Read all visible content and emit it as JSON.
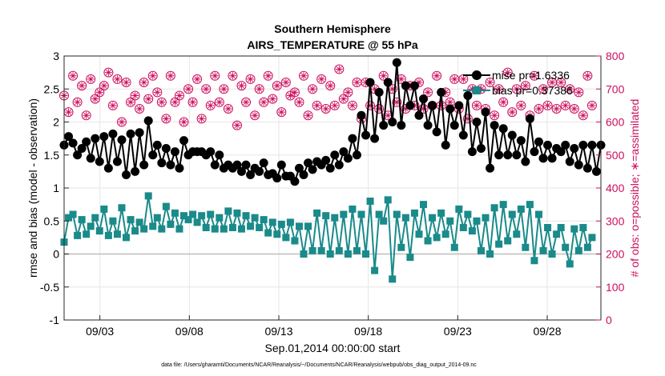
{
  "chart_data": {
    "type": "line",
    "title": "Southern Hemisphere",
    "subtitle": "AIRS_TEMPERATURE @ 55 hPa",
    "xlabel": "Sep.01,2014 00:00:00 start",
    "ylabel_left": "rmse and bias (model - observation)",
    "ylabel_right": "# of obs: o=possible; ∗=assimilated",
    "footnote": "data file: /Users/gharamti/Documents/NCAR/Reanalysis/~/Documents/NCAR/Reanalysis/webpub/obs_diag_output_2014-09.nc",
    "x_range_days": [
      1.0,
      31.0
    ],
    "x_tick_days": [
      3,
      8,
      13,
      18,
      23,
      28
    ],
    "x_tick_labels": [
      "09/03",
      "09/08",
      "09/13",
      "09/18",
      "09/23",
      "09/28"
    ],
    "ylim_left": [
      -1,
      3
    ],
    "y_ticks_left": [
      "-1",
      "-0.5",
      "0",
      "0.5",
      "1",
      "1.5",
      "2",
      "2.5",
      "3"
    ],
    "ylim_right": [
      0,
      800
    ],
    "y_ticks_right": [
      "0",
      "100",
      "200",
      "300",
      "400",
      "500",
      "600",
      "700",
      "800"
    ],
    "grid": true,
    "legend_position": "top-right",
    "colors": {
      "rmse": "#000000",
      "bias": "#1a8a8a",
      "obs": "#cc0f5e",
      "zero_line": "#bdbdbd",
      "grid": "#e6e6e6"
    },
    "series": [
      {
        "name": "mise pr=1.6336",
        "axis": "left",
        "values": [
          1.65,
          1.78,
          1.68,
          1.5,
          1.6,
          1.7,
          1.45,
          1.75,
          1.4,
          1.78,
          1.3,
          1.82,
          1.4,
          1.73,
          1.2,
          1.82,
          1.25,
          1.84,
          1.35,
          2.02,
          1.5,
          1.65,
          1.38,
          1.6,
          1.35,
          1.55,
          1.3,
          1.72,
          1.5,
          1.55,
          1.55,
          1.55,
          1.5,
          1.55,
          1.35,
          1.5,
          1.3,
          1.35,
          1.3,
          1.35,
          1.25,
          1.35,
          1.2,
          1.3,
          1.25,
          1.38,
          1.2,
          1.22,
          1.15,
          1.35,
          1.18,
          1.18,
          1.1,
          1.3,
          1.2,
          1.38,
          1.28,
          1.4,
          1.35,
          1.42,
          1.3,
          1.5,
          1.35,
          1.55,
          1.45,
          1.75,
          1.5,
          2.1,
          1.8,
          2.6,
          1.75,
          2.45,
          1.95,
          2.6,
          2.0,
          2.9,
          1.95,
          2.55,
          2.25,
          2.55,
          2.1,
          2.35,
          1.95,
          2.25,
          1.85,
          2.45,
          1.65,
          2.2,
          1.95,
          2.25,
          1.8,
          2.4,
          1.55,
          2.0,
          1.6,
          2.15,
          1.3,
          1.95,
          1.5,
          1.9,
          1.5,
          1.8,
          1.5,
          1.72,
          1.4,
          2.05,
          1.55,
          1.7,
          1.45,
          1.65,
          1.45,
          1.6,
          1.55,
          1.65,
          1.4,
          1.6,
          1.35,
          1.65,
          1.3,
          1.65,
          1.25,
          1.65
        ]
      },
      {
        "name": "bias pr=0.37386",
        "axis": "left",
        "values": [
          0.18,
          0.55,
          0.6,
          0.28,
          0.52,
          0.3,
          0.42,
          0.55,
          0.35,
          0.68,
          0.28,
          0.5,
          0.3,
          0.7,
          0.25,
          0.52,
          0.35,
          0.48,
          0.38,
          0.88,
          0.42,
          0.55,
          0.38,
          0.72,
          0.45,
          0.62,
          0.38,
          0.58,
          0.52,
          0.6,
          0.48,
          0.58,
          0.4,
          0.6,
          0.38,
          0.55,
          0.38,
          0.65,
          0.4,
          0.62,
          0.38,
          0.58,
          0.42,
          0.55,
          0.4,
          0.52,
          0.32,
          0.48,
          0.3,
          0.45,
          0.25,
          0.48,
          0.2,
          0.42,
          0.0,
          0.42,
          0.05,
          0.62,
          0.05,
          0.58,
          0.0,
          0.55,
          0.05,
          0.6,
          0.0,
          0.68,
          0.05,
          0.6,
          0.0,
          0.8,
          -0.25,
          0.6,
          0.5,
          0.82,
          -0.38,
          0.6,
          0.1,
          0.55,
          -0.05,
          0.62,
          0.3,
          0.75,
          0.2,
          0.55,
          0.25,
          0.62,
          0.3,
          0.5,
          0.1,
          0.68,
          0.4,
          0.6,
          0.35,
          0.5,
          0.05,
          0.55,
          0.0,
          0.7,
          0.15,
          0.75,
          0.2,
          0.6,
          0.3,
          0.68,
          0.1,
          0.75,
          -0.1,
          0.6,
          0.05,
          0.4,
          0.0,
          0.3,
          0.4,
          0.1,
          -0.15,
          0.38,
          0.05,
          0.4,
          0.1,
          0.25
        ]
      },
      {
        "name": "obs possible",
        "axis": "right",
        "values": [
          680,
          630,
          740,
          660,
          710,
          620,
          730,
          670,
          690,
          710,
          750,
          650,
          730,
          600,
          720,
          660,
          680,
          640,
          720,
          670,
          740,
          690,
          660,
          610,
          740,
          660,
          680,
          600,
          700,
          660,
          730,
          610,
          700,
          650,
          740,
          660,
          700,
          640,
          740,
          590,
          710,
          660,
          730,
          620,
          700,
          660,
          740,
          670,
          710,
          630,
          720,
          680,
          690,
          660,
          740,
          620,
          700,
          650,
          730,
          640,
          710,
          650,
          760,
          670,
          690,
          650,
          720,
          610,
          720,
          650,
          700,
          640,
          740,
          620,
          700,
          660,
          730,
          640,
          710,
          650,
          720,
          640,
          690,
          650,
          740,
          650,
          690,
          660,
          730,
          640,
          730,
          610,
          700,
          650,
          700,
          640,
          720,
          620,
          700,
          660,
          750,
          630,
          700,
          650,
          710,
          620,
          740,
          640,
          700,
          650,
          720,
          640,
          720,
          650,
          700,
          640,
          690,
          620,
          740,
          650
        ]
      },
      {
        "name": "obs assimilated",
        "axis": "right",
        "values": [
          680,
          630,
          740,
          660,
          710,
          620,
          730,
          670,
          690,
          710,
          750,
          650,
          730,
          600,
          720,
          660,
          680,
          640,
          720,
          670,
          740,
          690,
          660,
          610,
          740,
          660,
          680,
          600,
          700,
          660,
          730,
          610,
          700,
          650,
          740,
          660,
          700,
          640,
          740,
          590,
          710,
          660,
          730,
          620,
          700,
          660,
          740,
          670,
          710,
          630,
          720,
          680,
          690,
          660,
          740,
          620,
          700,
          650,
          730,
          640,
          710,
          650,
          760,
          670,
          690,
          650,
          720,
          610,
          720,
          650,
          700,
          640,
          740,
          620,
          700,
          660,
          730,
          640,
          710,
          650,
          720,
          640,
          690,
          650,
          740,
          650,
          690,
          660,
          730,
          640,
          730,
          610,
          700,
          650,
          700,
          640,
          720,
          620,
          700,
          660,
          750,
          630,
          700,
          650,
          710,
          620,
          740,
          640,
          700,
          650,
          720,
          640,
          720,
          650,
          700,
          640,
          690,
          620,
          740,
          650
        ]
      }
    ]
  }
}
